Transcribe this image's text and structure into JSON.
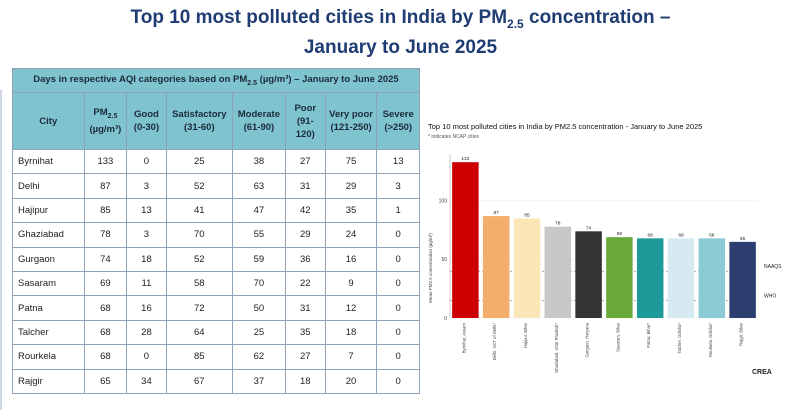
{
  "page": {
    "title_line1_a": "Top 10 most polluted cities in India by PM",
    "title_line1_sub": "2.5",
    "title_line1_b": " concentration –",
    "title_line2": "January to June 2025"
  },
  "aqi_table": {
    "caption_a": "Days in respective AQI categories based on PM",
    "caption_sub": "2.5",
    "caption_b": " (µg/m³) – January to June 2025",
    "headers": {
      "city": "City",
      "pm_a": "PM",
      "pm_sub": "2.5",
      "pm_unit": "(µg/m³)",
      "good": "Good",
      "good_range": "(0-30)",
      "satisfactory": "Satisfactory",
      "satisfactory_range": "(31-60)",
      "moderate": "Moderate",
      "moderate_range": "(61-90)",
      "poor": "Poor",
      "poor_range": "(91-120)",
      "very_poor": "Very poor",
      "very_poor_range": "(121-250)",
      "severe": "Severe",
      "severe_range": "(>250)"
    },
    "rows": [
      {
        "city": "Byrnihat",
        "pm": "133",
        "good": "0",
        "satisfactory": "25",
        "moderate": "38",
        "poor": "27",
        "very_poor": "75",
        "severe": "13"
      },
      {
        "city": "Delhi",
        "pm": "87",
        "good": "3",
        "satisfactory": "52",
        "moderate": "63",
        "poor": "31",
        "very_poor": "29",
        "severe": "3"
      },
      {
        "city": "Hajipur",
        "pm": "85",
        "good": "13",
        "satisfactory": "41",
        "moderate": "47",
        "poor": "42",
        "very_poor": "35",
        "severe": "1"
      },
      {
        "city": "Ghaziabad",
        "pm": "78",
        "good": "3",
        "satisfactory": "70",
        "moderate": "55",
        "poor": "29",
        "very_poor": "24",
        "severe": "0"
      },
      {
        "city": "Gurgaon",
        "pm": "74",
        "good": "18",
        "satisfactory": "52",
        "moderate": "59",
        "poor": "36",
        "very_poor": "16",
        "severe": "0"
      },
      {
        "city": "Sasaram",
        "pm": "69",
        "good": "11",
        "satisfactory": "58",
        "moderate": "70",
        "poor": "22",
        "very_poor": "9",
        "severe": "0"
      },
      {
        "city": "Patna",
        "pm": "68",
        "good": "16",
        "satisfactory": "72",
        "moderate": "50",
        "poor": "31",
        "very_poor": "12",
        "severe": "0"
      },
      {
        "city": "Talcher",
        "pm": "68",
        "good": "28",
        "satisfactory": "64",
        "moderate": "25",
        "poor": "35",
        "very_poor": "18",
        "severe": "0"
      },
      {
        "city": "Rourkela",
        "pm": "68",
        "good": "0",
        "satisfactory": "85",
        "moderate": "62",
        "poor": "27",
        "very_poor": "7",
        "severe": "0"
      },
      {
        "city": "Rajgir",
        "pm": "65",
        "good": "34",
        "satisfactory": "67",
        "moderate": "37",
        "poor": "18",
        "very_poor": "20",
        "severe": "0"
      }
    ]
  },
  "chart_data": {
    "type": "bar",
    "title": "Top 10 most polluted cities in India by PM2.5 concentration - January to June 2025",
    "subtitle": "* indicates NCAP cities",
    "ylabel": "Mean PM2.5 concentration (µg/m³)",
    "xlabel": "",
    "ylim": [
      0,
      140
    ],
    "yticks": [
      0,
      50,
      100
    ],
    "grid": true,
    "categories": [
      "Byrnihat, Assam",
      "Delhi, NCT of Delhi*",
      "Hajipur, Bihar",
      "Ghaziabad, Uttar Pradesh*",
      "Gurgaon, Haryana",
      "Sasaram, Bihar",
      "Patna, Bihar*",
      "Talcher, Odisha*",
      "Rourkela, Odisha*",
      "Rajgir, Bihar"
    ],
    "values": [
      133,
      87,
      85,
      78,
      74,
      69,
      68,
      68,
      68,
      65
    ],
    "colors": [
      "#cc0000",
      "#f4ae6b",
      "#fbe6b8",
      "#c7c7c7",
      "#333333",
      "#6aaa3a",
      "#1f9a9a",
      "#d4eaf0",
      "#8ccbd5",
      "#2c3e70"
    ],
    "reference_lines": [
      {
        "label": "NAAQS",
        "value": 40
      },
      {
        "label": "WHO",
        "value": 15
      }
    ],
    "logo": "CREA"
  }
}
